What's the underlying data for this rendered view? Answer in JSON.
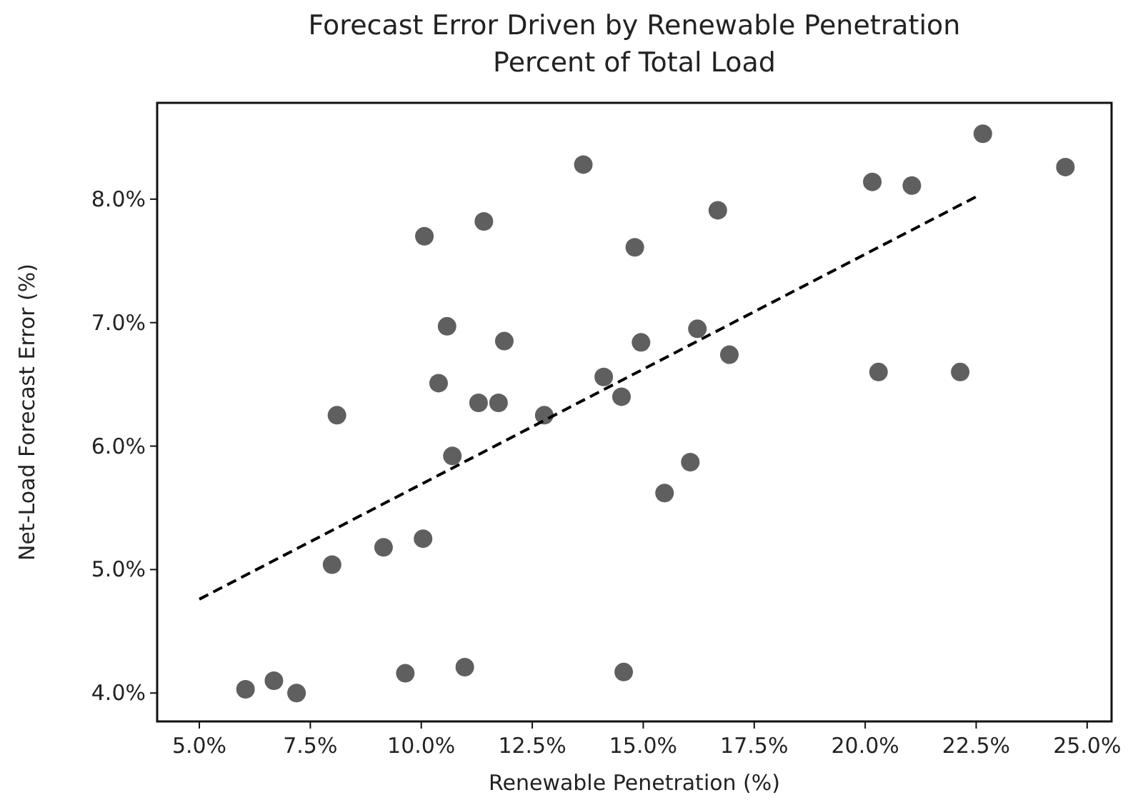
{
  "chart_data": {
    "type": "scatter",
    "title": "Forecast Error Driven by Renewable Penetration",
    "subtitle": "Percent of Total Load",
    "xlabel": "Renewable Penetration (%)",
    "ylabel": "Net-Load Forecast Error (%)",
    "xlim": [
      4.05,
      25.55
    ],
    "ylim": [
      3.77,
      8.78
    ],
    "xticks": [
      {
        "value": 5,
        "label": "5.0%"
      },
      {
        "value": 7.5,
        "label": "7.5%"
      },
      {
        "value": 10,
        "label": "10.0%"
      },
      {
        "value": 12.5,
        "label": "12.5%"
      },
      {
        "value": 15,
        "label": "15.0%"
      },
      {
        "value": 17.5,
        "label": "17.5%"
      },
      {
        "value": 20,
        "label": "20.0%"
      },
      {
        "value": 22.5,
        "label": "22.5%"
      },
      {
        "value": 25,
        "label": "25.0%"
      }
    ],
    "yticks": [
      {
        "value": 4,
        "label": "4.0%"
      },
      {
        "value": 5,
        "label": "5.0%"
      },
      {
        "value": 6,
        "label": "6.0%"
      },
      {
        "value": 7,
        "label": "7.0%"
      },
      {
        "value": 8,
        "label": "8.0%"
      }
    ],
    "grid": false,
    "series": [
      {
        "color": "#5f5f5f",
        "marker": "circle",
        "x": [
          13.65,
          11.41,
          10.07,
          10.58,
          11.87,
          10.39,
          11.29,
          11.74,
          8.1,
          12.77,
          14.11,
          14.51,
          22.65,
          24.51,
          20.16,
          21.05,
          16.68,
          14.81,
          14.95,
          16.22,
          16.94,
          20.3,
          22.14,
          10.7,
          9.15,
          10.04,
          7.99,
          6.04,
          6.68,
          7.19,
          9.64,
          10.98,
          14.56,
          16.06,
          15.48
        ],
        "values": [
          8.28,
          7.82,
          7.7,
          6.97,
          6.85,
          6.51,
          6.35,
          6.35,
          6.25,
          6.25,
          6.56,
          6.4,
          8.53,
          8.26,
          8.14,
          8.11,
          7.91,
          7.61,
          6.84,
          6.95,
          6.74,
          6.6,
          6.6,
          5.92,
          5.18,
          5.25,
          5.04,
          4.03,
          4.1,
          4.0,
          4.16,
          4.21,
          4.17,
          5.87,
          5.62
        ]
      },
      {
        "type": "line",
        "color": "#000000",
        "line_style": "dashed",
        "marker": "none",
        "x": [
          5.0,
          22.5
        ],
        "values": [
          4.76,
          8.02
        ]
      }
    ]
  }
}
